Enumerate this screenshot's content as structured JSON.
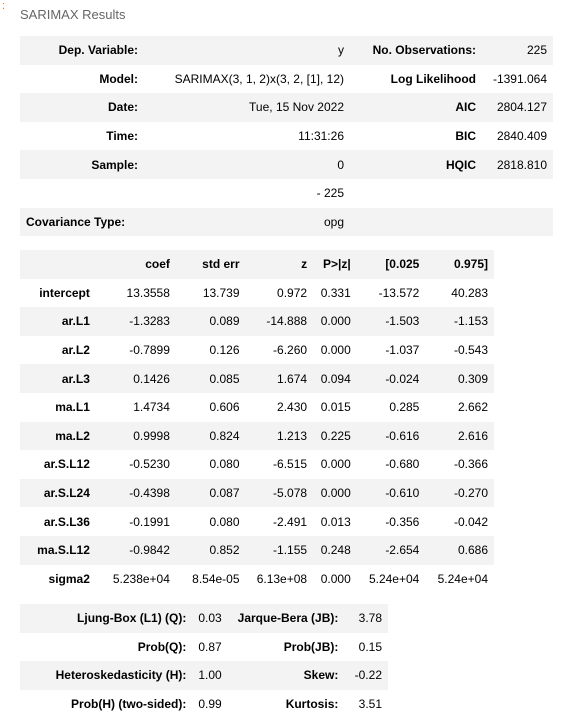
{
  "marker": ":",
  "caption": "SARIMAX Results",
  "summary": {
    "rows": [
      {
        "l1": "Dep. Variable:",
        "v1": "y",
        "l2": "No. Observations:",
        "v2": "225"
      },
      {
        "l1": "Model:",
        "v1": "SARIMAX(3, 1, 2)x(3, 2, [1], 12)",
        "l2": "Log Likelihood",
        "v2": "-1391.064"
      },
      {
        "l1": "Date:",
        "v1": "Tue, 15 Nov 2022",
        "l2": "AIC",
        "v2": "2804.127"
      },
      {
        "l1": "Time:",
        "v1": "11:31:26",
        "l2": "BIC",
        "v2": "2840.409"
      },
      {
        "l1": "Sample:",
        "v1": "0",
        "l2": "HQIC",
        "v2": "2818.810"
      },
      {
        "l1": "",
        "v1": "- 225",
        "l2": "",
        "v2": ""
      },
      {
        "l1": "Covariance Type:",
        "v1": "opg",
        "l2": "",
        "v2": ""
      }
    ]
  },
  "coef": {
    "headers": [
      "",
      "coef",
      "std err",
      "z",
      "P>|z|",
      "[0.025",
      "0.975]"
    ],
    "rows": [
      [
        "intercept",
        "13.3558",
        "13.739",
        "0.972",
        "0.331",
        "-13.572",
        "40.283"
      ],
      [
        "ar.L1",
        "-1.3283",
        "0.089",
        "-14.888",
        "0.000",
        "-1.503",
        "-1.153"
      ],
      [
        "ar.L2",
        "-0.7899",
        "0.126",
        "-6.260",
        "0.000",
        "-1.037",
        "-0.543"
      ],
      [
        "ar.L3",
        "0.1426",
        "0.085",
        "1.674",
        "0.094",
        "-0.024",
        "0.309"
      ],
      [
        "ma.L1",
        "1.4734",
        "0.606",
        "2.430",
        "0.015",
        "0.285",
        "2.662"
      ],
      [
        "ma.L2",
        "0.9998",
        "0.824",
        "1.213",
        "0.225",
        "-0.616",
        "2.616"
      ],
      [
        "ar.S.L12",
        "-0.5230",
        "0.080",
        "-6.515",
        "0.000",
        "-0.680",
        "-0.366"
      ],
      [
        "ar.S.L24",
        "-0.4398",
        "0.087",
        "-5.078",
        "0.000",
        "-0.610",
        "-0.270"
      ],
      [
        "ar.S.L36",
        "-0.1991",
        "0.080",
        "-2.491",
        "0.013",
        "-0.356",
        "-0.042"
      ],
      [
        "ma.S.L12",
        "-0.9842",
        "0.852",
        "-1.155",
        "0.248",
        "-2.654",
        "0.686"
      ],
      [
        "sigma2",
        "5.238e+04",
        "8.54e-05",
        "6.13e+08",
        "0.000",
        "5.24e+04",
        "5.24e+04"
      ]
    ]
  },
  "diag": {
    "rows": [
      {
        "l1": "Ljung-Box (L1) (Q):",
        "v1": "0.03",
        "l2": "Jarque-Bera (JB):",
        "v2": "3.78"
      },
      {
        "l1": "Prob(Q):",
        "v1": "0.87",
        "l2": "Prob(JB):",
        "v2": "0.15"
      },
      {
        "l1": "Heteroskedasticity (H):",
        "v1": "1.00",
        "l2": "Skew:",
        "v2": "-0.22"
      },
      {
        "l1": "Prob(H) (two-sided):",
        "v1": "0.99",
        "l2": "Kurtosis:",
        "v2": "3.51"
      }
    ]
  }
}
